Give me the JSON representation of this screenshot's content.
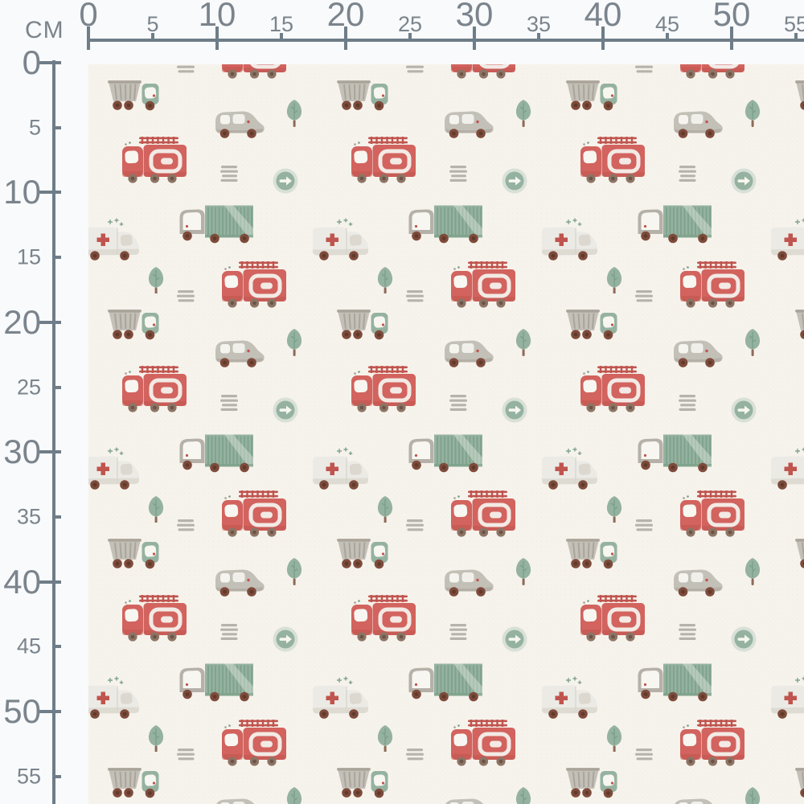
{
  "rulers": {
    "unit_label": "CM",
    "top_labels": [
      "0",
      "5",
      "10",
      "15",
      "20",
      "25",
      "30",
      "35",
      "40",
      "45",
      "50",
      "55"
    ],
    "left_labels": [
      "0",
      "5",
      "10",
      "15",
      "20",
      "25",
      "30",
      "35",
      "40",
      "45",
      "50",
      "55"
    ]
  },
  "fabric": {
    "motifs": [
      "fire-truck",
      "dump-truck",
      "cargo-truck",
      "ambulance",
      "car",
      "tree",
      "arrow-sign",
      "road-dashes"
    ]
  },
  "colors": {
    "pageBg": "#f8fafb",
    "rulerLine": "#6e7d88",
    "rulerText": "#7b848c",
    "fabricBg": "#f6f3ec",
    "red": "#d2635e",
    "redDark": "#c0544e",
    "green": "#95b2a0",
    "greenDark": "#769c84",
    "greenPale": "#cdd9d1",
    "grayBody": "#c3c0b8",
    "grayLine": "#a49e93",
    "grayCab": "#b5b1a8",
    "brown": "#7e4b3b",
    "brownDark": "#5f3a2d",
    "tan": "#8d6a58",
    "wheelGray": "#8d7465",
    "wheelGrayDark": "#6a5447",
    "white": "#f7f6f1",
    "ambBody": "#eceae5",
    "ambShade": "#d9d5cd",
    "windowGray": "#dcd8d0",
    "dash": "#b6b3ab"
  }
}
